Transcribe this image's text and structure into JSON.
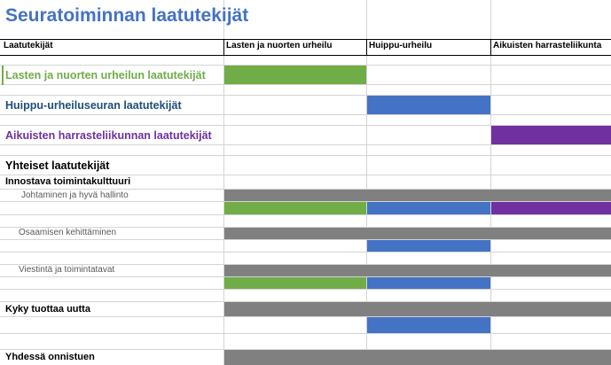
{
  "sheet": {
    "title": "Seuratoiminnan laatutekijät",
    "headers": {
      "col_a": "Laatutekijät",
      "col_b": "Lasten ja nuorten urheilu",
      "col_c": "Huippu-urheilu",
      "col_d": "Aikuisten harrasteliikunta"
    },
    "rows": {
      "lasten": "Lasten ja nuorten urheilun laatutekijät",
      "huippu": "Huippu-urheiluseuran laatutekijät",
      "aikuisten": "Aikuisten harrasteliikunnan laatutekijät",
      "yhteiset": "Yhteiset laatutekijät",
      "innostava": "Innostava toimintakulttuuri",
      "johtaminen": "Johtaminen ja hyvä hallinto",
      "osaaminen": "Osaamisen kehittäminen",
      "viestinta": "Viestintä ja toimintatavat",
      "kyky": "Kyky tuottaa uutta",
      "yhdessa": "Yhdessä onnistuen"
    }
  },
  "colors": {
    "title_blue": "#4472c4",
    "green": "#70ad47",
    "blue": "#4472c4",
    "purple": "#7030a0",
    "gray": "#808080"
  }
}
